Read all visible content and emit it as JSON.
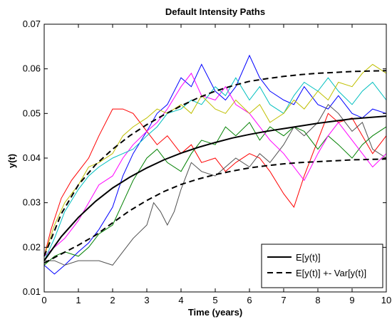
{
  "chart_data": {
    "type": "line",
    "title": "Default Intensity Paths",
    "xlabel": "Time (years)",
    "ylabel": "y(t)",
    "xlim": [
      0,
      10
    ],
    "ylim": [
      0.01,
      0.07
    ],
    "xticks": [
      "0",
      "1",
      "2",
      "3",
      "4",
      "5",
      "6",
      "7",
      "8",
      "9",
      "10"
    ],
    "yticks": [
      "0.01",
      "0.02",
      "0.03",
      "0.04",
      "0.05",
      "0.06",
      "0.07"
    ],
    "grid": false,
    "legend_position": "bottom-right",
    "legend": [
      {
        "label": "E[y(t)]",
        "style": "solid"
      },
      {
        "label": "E[y(t)] +- Var[y(t)]",
        "style": "dashed"
      }
    ],
    "mean_curve": {
      "x": [
        0,
        0.5,
        1,
        1.5,
        2,
        2.5,
        3,
        3.5,
        4,
        4.5,
        5,
        5.5,
        6,
        6.5,
        7,
        7.5,
        8,
        8.5,
        9,
        9.5,
        10
      ],
      "y": [
        0.017,
        0.0224,
        0.0267,
        0.0303,
        0.0333,
        0.0357,
        0.0378,
        0.0396,
        0.0411,
        0.0424,
        0.0435,
        0.0445,
        0.0453,
        0.046,
        0.0466,
        0.0472,
        0.0478,
        0.0483,
        0.0488,
        0.0491,
        0.0494
      ]
    },
    "upper_curve": {
      "x": [
        0,
        0.5,
        1,
        1.5,
        2,
        2.5,
        3,
        3.5,
        4,
        4.5,
        5,
        5.5,
        6,
        6.5,
        7,
        7.5,
        8,
        8.5,
        9,
        9.5,
        10
      ],
      "y": [
        0.018,
        0.0275,
        0.034,
        0.0385,
        0.042,
        0.045,
        0.0475,
        0.0497,
        0.0517,
        0.0535,
        0.055,
        0.0562,
        0.0572,
        0.0578,
        0.0583,
        0.0587,
        0.059,
        0.0592,
        0.0594,
        0.0595,
        0.0596
      ]
    },
    "lower_curve": {
      "x": [
        0,
        0.5,
        1,
        1.5,
        2,
        2.5,
        3,
        3.5,
        4,
        4.5,
        5,
        5.5,
        6,
        6.5,
        7,
        7.5,
        8,
        8.5,
        9,
        9.5,
        10
      ],
      "y": [
        0.0165,
        0.0185,
        0.0205,
        0.0227,
        0.0255,
        0.0282,
        0.0305,
        0.0325,
        0.0341,
        0.0353,
        0.0363,
        0.0371,
        0.0378,
        0.0383,
        0.0387,
        0.039,
        0.0392,
        0.0394,
        0.0396,
        0.0397,
        0.0398
      ]
    },
    "paths": [
      {
        "color": "#ff0000",
        "x": [
          0,
          0.2,
          0.5,
          0.8,
          1,
          1.3,
          1.6,
          2,
          2.3,
          2.6,
          3,
          3.3,
          3.6,
          4,
          4.3,
          4.6,
          5,
          5.3,
          5.6,
          6,
          6.3,
          6.6,
          7,
          7.3,
          7.6,
          8,
          8.3,
          8.6,
          9,
          9.3,
          9.6,
          10
        ],
        "y": [
          0.018,
          0.024,
          0.031,
          0.035,
          0.037,
          0.04,
          0.045,
          0.051,
          0.051,
          0.05,
          0.046,
          0.043,
          0.045,
          0.041,
          0.043,
          0.039,
          0.04,
          0.037,
          0.039,
          0.041,
          0.04,
          0.037,
          0.032,
          0.029,
          0.036,
          0.044,
          0.05,
          0.048,
          0.049,
          0.045,
          0.041,
          0.045
        ]
      },
      {
        "color": "#0000ff",
        "x": [
          0,
          0.3,
          0.6,
          1,
          1.3,
          1.6,
          2,
          2.3,
          2.6,
          3,
          3.3,
          3.6,
          4,
          4.3,
          4.6,
          5,
          5.3,
          5.6,
          6,
          6.3,
          6.6,
          7,
          7.3,
          7.6,
          8,
          8.3,
          8.6,
          9,
          9.3,
          9.6,
          10
        ],
        "y": [
          0.016,
          0.014,
          0.016,
          0.019,
          0.021,
          0.024,
          0.029,
          0.036,
          0.041,
          0.046,
          0.05,
          0.052,
          0.058,
          0.056,
          0.061,
          0.055,
          0.053,
          0.056,
          0.063,
          0.058,
          0.055,
          0.053,
          0.052,
          0.056,
          0.052,
          0.051,
          0.054,
          0.05,
          0.049,
          0.051,
          0.05
        ]
      },
      {
        "color": "#008000",
        "x": [
          0,
          0.3,
          0.6,
          1,
          1.3,
          1.6,
          2,
          2.3,
          2.6,
          3,
          3.3,
          3.6,
          4,
          4.3,
          4.6,
          5,
          5.3,
          5.6,
          6,
          6.3,
          6.6,
          7,
          7.3,
          7.6,
          8,
          8.3,
          8.6,
          9,
          9.3,
          9.6,
          10
        ],
        "y": [
          0.016,
          0.018,
          0.019,
          0.018,
          0.02,
          0.023,
          0.025,
          0.03,
          0.035,
          0.04,
          0.042,
          0.039,
          0.037,
          0.041,
          0.044,
          0.043,
          0.047,
          0.045,
          0.048,
          0.044,
          0.047,
          0.045,
          0.047,
          0.046,
          0.042,
          0.045,
          0.043,
          0.04,
          0.043,
          0.045,
          0.047
        ]
      },
      {
        "color": "#505050",
        "x": [
          0,
          0.3,
          0.6,
          1,
          1.3,
          1.6,
          2,
          2.3,
          2.6,
          3,
          3.2,
          3.4,
          3.6,
          3.8,
          4,
          4.3,
          4.6,
          5,
          5.3,
          5.6,
          6,
          6.3,
          6.6,
          7,
          7.3,
          7.6,
          8,
          8.3,
          8.6,
          9,
          9.3,
          9.6,
          10
        ],
        "y": [
          0.017,
          0.017,
          0.016,
          0.017,
          0.017,
          0.017,
          0.016,
          0.019,
          0.022,
          0.025,
          0.03,
          0.028,
          0.025,
          0.028,
          0.033,
          0.039,
          0.037,
          0.036,
          0.038,
          0.04,
          0.038,
          0.041,
          0.039,
          0.043,
          0.047,
          0.045,
          0.048,
          0.052,
          0.05,
          0.046,
          0.048,
          0.042,
          0.04
        ]
      },
      {
        "color": "#ff00ff",
        "x": [
          0,
          0.3,
          0.6,
          1,
          1.3,
          1.6,
          2,
          2.3,
          2.6,
          3,
          3.3,
          3.6,
          4,
          4.3,
          4.6,
          5,
          5.3,
          5.6,
          6,
          6.3,
          6.6,
          7,
          7.3,
          7.6,
          8,
          8.3,
          8.6,
          9,
          9.3,
          9.6,
          10
        ],
        "y": [
          0.018,
          0.02,
          0.022,
          0.026,
          0.03,
          0.034,
          0.036,
          0.04,
          0.043,
          0.046,
          0.048,
          0.051,
          0.056,
          0.059,
          0.054,
          0.053,
          0.056,
          0.052,
          0.05,
          0.047,
          0.044,
          0.041,
          0.038,
          0.035,
          0.041,
          0.045,
          0.048,
          0.044,
          0.041,
          0.038,
          0.041
        ]
      },
      {
        "color": "#00bfbf",
        "x": [
          0,
          0.3,
          0.6,
          1,
          1.3,
          1.6,
          2,
          2.3,
          2.6,
          3,
          3.3,
          3.6,
          4,
          4.3,
          4.6,
          5,
          5.3,
          5.6,
          6,
          6.3,
          6.6,
          7,
          7.3,
          7.6,
          8,
          8.3,
          8.6,
          9,
          9.3,
          9.6,
          10
        ],
        "y": [
          0.017,
          0.022,
          0.028,
          0.033,
          0.036,
          0.038,
          0.04,
          0.041,
          0.042,
          0.045,
          0.047,
          0.05,
          0.051,
          0.053,
          0.052,
          0.056,
          0.054,
          0.058,
          0.053,
          0.056,
          0.052,
          0.05,
          0.054,
          0.057,
          0.055,
          0.058,
          0.055,
          0.052,
          0.055,
          0.057,
          0.053
        ]
      },
      {
        "color": "#bfbf00",
        "x": [
          0,
          0.3,
          0.6,
          1,
          1.3,
          1.6,
          2,
          2.3,
          2.6,
          3,
          3.3,
          3.6,
          4,
          4.3,
          4.6,
          5,
          5.3,
          5.6,
          6,
          6.3,
          6.6,
          7,
          7.3,
          7.6,
          8,
          8.3,
          8.6,
          9,
          9.3,
          9.6,
          10
        ],
        "y": [
          0.018,
          0.025,
          0.03,
          0.034,
          0.038,
          0.039,
          0.041,
          0.045,
          0.047,
          0.049,
          0.051,
          0.05,
          0.052,
          0.05,
          0.054,
          0.051,
          0.05,
          0.053,
          0.05,
          0.052,
          0.048,
          0.05,
          0.053,
          0.051,
          0.055,
          0.053,
          0.057,
          0.056,
          0.059,
          0.061,
          0.059
        ]
      }
    ]
  }
}
